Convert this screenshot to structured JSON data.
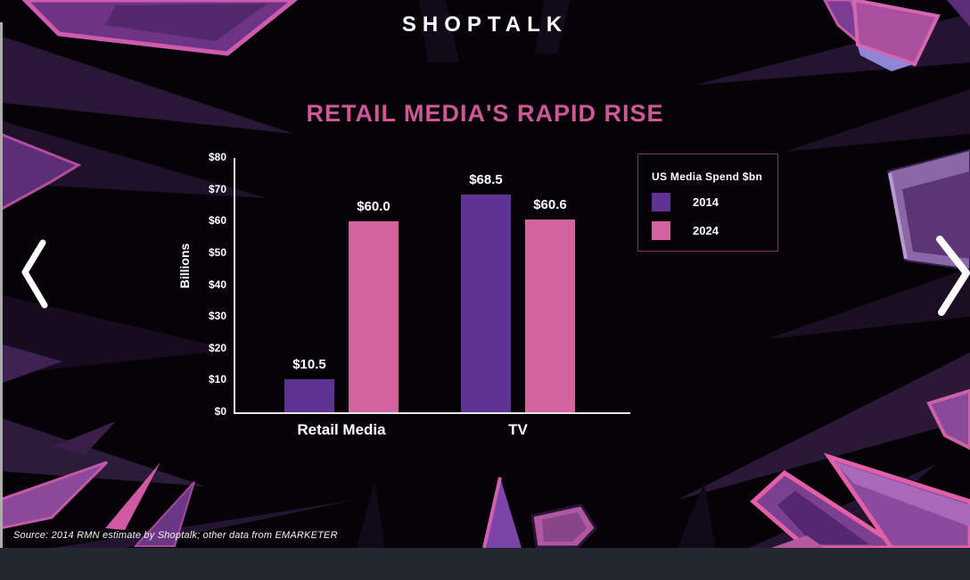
{
  "logo": {
    "text": "SHOPTALK"
  },
  "slide": {
    "title": "RETAIL MEDIA'S RAPID RISE",
    "source": "Source: 2014 RMN estimate by Shoptalk; other data from EMARKETER"
  },
  "carousel": {
    "prev_icon": "chevron-left",
    "next_icon": "chevron-right"
  },
  "chart_data": {
    "type": "bar",
    "title": "RETAIL MEDIA'S RAPID RISE",
    "categories": [
      "Retail Media",
      "TV"
    ],
    "series": [
      {
        "name": "2014",
        "color": "#5d3494",
        "values": [
          10.5,
          68.5
        ],
        "labels": [
          "$10.5",
          "$68.5"
        ]
      },
      {
        "name": "2024",
        "color": "#d2639f",
        "values": [
          60.0,
          60.6
        ],
        "labels": [
          "$60.0",
          "$60.6"
        ]
      }
    ],
    "ylabel": "Billions",
    "yticks": [
      "$0",
      "$10",
      "$20",
      "$30",
      "$40",
      "$50",
      "$60",
      "$70",
      "$80"
    ],
    "ylim": [
      0,
      80
    ],
    "grid": false,
    "legend_title": "US Media Spend $bn",
    "legend_position": "right"
  },
  "colors": {
    "background": "#050307",
    "title_pink": "#cf5795",
    "bar_purple": "#5d3494",
    "bar_pink": "#d2639f",
    "axis": "#e6e6e6",
    "legend_border": "#7a3a5e",
    "footer_strip": "#23272e",
    "text": "#ffffff"
  }
}
